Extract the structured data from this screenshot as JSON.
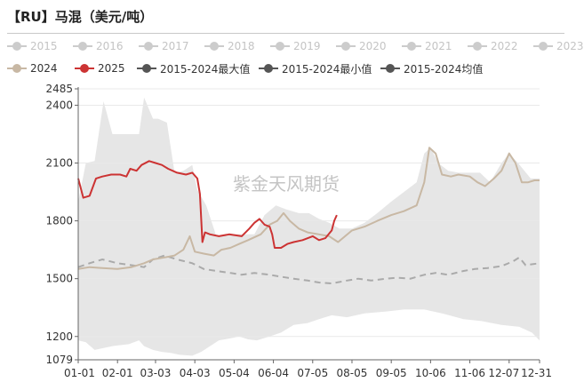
{
  "title": "【RU】马混（美元/吨）",
  "watermark": "紫金天风期货",
  "legend": [
    {
      "label": "2015",
      "color": "#cccccc",
      "muted": true
    },
    {
      "label": "2016",
      "color": "#cccccc",
      "muted": true
    },
    {
      "label": "2017",
      "color": "#cccccc",
      "muted": true
    },
    {
      "label": "2018",
      "color": "#cccccc",
      "muted": true
    },
    {
      "label": "2019",
      "color": "#cccccc",
      "muted": true
    },
    {
      "label": "2020",
      "color": "#cccccc",
      "muted": true
    },
    {
      "label": "2021",
      "color": "#cccccc",
      "muted": true
    },
    {
      "label": "2022",
      "color": "#cccccc",
      "muted": true
    },
    {
      "label": "2023",
      "color": "#cccccc",
      "muted": true
    },
    {
      "label": "2024",
      "color": "#c8b8a4",
      "muted": false
    },
    {
      "label": "2025",
      "color": "#cc3333",
      "muted": false
    },
    {
      "label": "2015-2024最大值",
      "color": "#555555",
      "muted": false
    },
    {
      "label": "2015-2024最小值",
      "color": "#555555",
      "muted": false
    },
    {
      "label": "2015-2024均值",
      "color": "#555555",
      "muted": false
    }
  ],
  "chart_data": {
    "type": "line",
    "title": "【RU】马混（美元/吨）",
    "x_axis": {
      "type": "date",
      "min": "01-01",
      "max": "12-31",
      "ticks": [
        "01-01",
        "02-01",
        "03-03",
        "04-03",
        "05-04",
        "06-04",
        "07-05",
        "08-05",
        "09-05",
        "10-06",
        "11-06",
        "12-07",
        "12-31"
      ]
    },
    "y_axis": {
      "min": 1079,
      "max": 2485,
      "ticks": [
        1079,
        1200,
        1500,
        1800,
        2100,
        2400,
        2485
      ]
    },
    "grid": true,
    "legend_position": "top",
    "colors": {
      "band": "#e6e6e6",
      "series_2024": "#c8b8a4",
      "series_2025": "#cc3333",
      "mean": "#aaaaaa"
    },
    "series": [
      {
        "name": "2015-2024最大值",
        "role": "band_upper",
        "points": [
          [
            "01-01",
            1900
          ],
          [
            "01-07",
            2100
          ],
          [
            "01-14",
            2110
          ],
          [
            "01-21",
            2420
          ],
          [
            "01-28",
            2250
          ],
          [
            "02-10",
            2250
          ],
          [
            "02-18",
            2250
          ],
          [
            "02-22",
            2440
          ],
          [
            "03-01",
            2330
          ],
          [
            "03-05",
            2330
          ],
          [
            "03-12",
            2310
          ],
          [
            "03-18",
            2050
          ],
          [
            "03-25",
            2060
          ],
          [
            "04-01",
            2090
          ],
          [
            "04-05",
            1960
          ],
          [
            "04-12",
            1880
          ],
          [
            "04-20",
            1720
          ],
          [
            "04-28",
            1730
          ],
          [
            "05-08",
            1730
          ],
          [
            "05-20",
            1730
          ],
          [
            "05-28",
            1830
          ],
          [
            "06-06",
            1880
          ],
          [
            "06-14",
            1860
          ],
          [
            "06-24",
            1840
          ],
          [
            "07-02",
            1840
          ],
          [
            "07-10",
            1810
          ],
          [
            "07-18",
            1790
          ],
          [
            "07-26",
            1760
          ],
          [
            "08-05",
            1760
          ],
          [
            "08-15",
            1790
          ],
          [
            "08-25",
            1840
          ],
          [
            "09-05",
            1900
          ],
          [
            "09-15",
            1950
          ],
          [
            "09-25",
            2000
          ],
          [
            "10-01",
            2150
          ],
          [
            "10-06",
            2180
          ],
          [
            "10-12",
            2100
          ],
          [
            "10-20",
            2060
          ],
          [
            "10-28",
            2050
          ],
          [
            "11-06",
            2050
          ],
          [
            "11-14",
            2050
          ],
          [
            "11-22",
            2000
          ],
          [
            "12-01",
            2100
          ],
          [
            "12-07",
            2150
          ],
          [
            "12-14",
            2100
          ],
          [
            "12-24",
            2020
          ],
          [
            "12-31",
            2020
          ]
        ]
      },
      {
        "name": "2015-2024最小值",
        "role": "band_lower",
        "points": [
          [
            "01-01",
            1180
          ],
          [
            "01-07",
            1170
          ],
          [
            "01-14",
            1130
          ],
          [
            "01-21",
            1140
          ],
          [
            "01-28",
            1150
          ],
          [
            "02-10",
            1160
          ],
          [
            "02-18",
            1180
          ],
          [
            "02-22",
            1150
          ],
          [
            "03-01",
            1130
          ],
          [
            "03-08",
            1120
          ],
          [
            "03-15",
            1115
          ],
          [
            "03-22",
            1105
          ],
          [
            "04-01",
            1100
          ],
          [
            "04-08",
            1120
          ],
          [
            "04-15",
            1150
          ],
          [
            "04-22",
            1180
          ],
          [
            "05-01",
            1190
          ],
          [
            "05-08",
            1200
          ],
          [
            "05-15",
            1185
          ],
          [
            "05-22",
            1180
          ],
          [
            "06-01",
            1200
          ],
          [
            "06-10",
            1220
          ],
          [
            "06-20",
            1260
          ],
          [
            "07-01",
            1270
          ],
          [
            "07-10",
            1290
          ],
          [
            "07-20",
            1310
          ],
          [
            "08-01",
            1300
          ],
          [
            "08-15",
            1320
          ],
          [
            "09-01",
            1330
          ],
          [
            "09-15",
            1340
          ],
          [
            "10-01",
            1340
          ],
          [
            "10-15",
            1320
          ],
          [
            "11-01",
            1290
          ],
          [
            "11-15",
            1280
          ],
          [
            "12-01",
            1260
          ],
          [
            "12-15",
            1250
          ],
          [
            "12-25",
            1220
          ],
          [
            "12-31",
            1180
          ]
        ]
      },
      {
        "name": "2024",
        "role": "line",
        "points": [
          [
            "01-01",
            1550
          ],
          [
            "01-10",
            1560
          ],
          [
            "01-20",
            1555
          ],
          [
            "02-01",
            1550
          ],
          [
            "02-12",
            1560
          ],
          [
            "02-22",
            1580
          ],
          [
            "03-01",
            1600
          ],
          [
            "03-10",
            1610
          ],
          [
            "03-18",
            1620
          ],
          [
            "03-25",
            1650
          ],
          [
            "03-30",
            1720
          ],
          [
            "04-03",
            1640
          ],
          [
            "04-10",
            1630
          ],
          [
            "04-18",
            1620
          ],
          [
            "04-24",
            1650
          ],
          [
            "05-01",
            1660
          ],
          [
            "05-08",
            1680
          ],
          [
            "05-15",
            1700
          ],
          [
            "05-25",
            1730
          ],
          [
            "06-01",
            1780
          ],
          [
            "06-07",
            1800
          ],
          [
            "06-12",
            1840
          ],
          [
            "06-17",
            1800
          ],
          [
            "06-24",
            1760
          ],
          [
            "07-01",
            1740
          ],
          [
            "07-10",
            1730
          ],
          [
            "07-18",
            1720
          ],
          [
            "07-25",
            1690
          ],
          [
            "08-05",
            1750
          ],
          [
            "08-15",
            1770
          ],
          [
            "08-25",
            1800
          ],
          [
            "09-05",
            1830
          ],
          [
            "09-15",
            1850
          ],
          [
            "09-25",
            1880
          ],
          [
            "10-01",
            2000
          ],
          [
            "10-05",
            2180
          ],
          [
            "10-10",
            2150
          ],
          [
            "10-15",
            2040
          ],
          [
            "10-22",
            2030
          ],
          [
            "10-28",
            2040
          ],
          [
            "11-06",
            2030
          ],
          [
            "11-12",
            2000
          ],
          [
            "11-18",
            1980
          ],
          [
            "11-25",
            2020
          ],
          [
            "12-01",
            2060
          ],
          [
            "12-07",
            2150
          ],
          [
            "12-12",
            2100
          ],
          [
            "12-17",
            2000
          ],
          [
            "12-22",
            2000
          ],
          [
            "12-27",
            2010
          ],
          [
            "12-31",
            2010
          ]
        ]
      },
      {
        "name": "2025",
        "role": "line",
        "points": [
          [
            "01-01",
            2020
          ],
          [
            "01-05",
            1920
          ],
          [
            "01-10",
            1930
          ],
          [
            "01-15",
            2020
          ],
          [
            "01-20",
            2030
          ],
          [
            "01-27",
            2040
          ],
          [
            "02-03",
            2040
          ],
          [
            "02-08",
            2030
          ],
          [
            "02-11",
            2070
          ],
          [
            "02-16",
            2060
          ],
          [
            "02-20",
            2090
          ],
          [
            "02-26",
            2110
          ],
          [
            "03-03",
            2100
          ],
          [
            "03-08",
            2090
          ],
          [
            "03-13",
            2070
          ],
          [
            "03-20",
            2050
          ],
          [
            "03-27",
            2040
          ],
          [
            "04-01",
            2050
          ],
          [
            "04-05",
            2020
          ],
          [
            "04-07",
            1940
          ],
          [
            "04-09",
            1690
          ],
          [
            "04-11",
            1740
          ],
          [
            "04-15",
            1730
          ],
          [
            "04-22",
            1720
          ],
          [
            "04-30",
            1730
          ],
          [
            "05-10",
            1720
          ],
          [
            "05-16",
            1760
          ],
          [
            "05-20",
            1790
          ],
          [
            "05-24",
            1810
          ],
          [
            "05-28",
            1780
          ],
          [
            "06-01",
            1770
          ],
          [
            "06-03",
            1730
          ],
          [
            "06-05",
            1660
          ],
          [
            "06-10",
            1660
          ],
          [
            "06-15",
            1680
          ],
          [
            "06-20",
            1690
          ],
          [
            "06-27",
            1700
          ],
          [
            "07-05",
            1720
          ],
          [
            "07-10",
            1700
          ],
          [
            "07-15",
            1710
          ],
          [
            "07-20",
            1750
          ],
          [
            "07-22",
            1800
          ],
          [
            "07-24",
            1830
          ]
        ]
      },
      {
        "name": "2015-2024均值",
        "role": "mean",
        "points": [
          [
            "01-01",
            1560
          ],
          [
            "01-10",
            1580
          ],
          [
            "01-20",
            1600
          ],
          [
            "02-01",
            1580
          ],
          [
            "02-12",
            1570
          ],
          [
            "02-22",
            1560
          ],
          [
            "03-01",
            1600
          ],
          [
            "03-10",
            1620
          ],
          [
            "03-20",
            1600
          ],
          [
            "04-01",
            1580
          ],
          [
            "04-10",
            1550
          ],
          [
            "04-20",
            1540
          ],
          [
            "05-01",
            1530
          ],
          [
            "05-10",
            1520
          ],
          [
            "05-20",
            1530
          ],
          [
            "06-01",
            1520
          ],
          [
            "06-10",
            1510
          ],
          [
            "06-20",
            1500
          ],
          [
            "07-01",
            1490
          ],
          [
            "07-10",
            1480
          ],
          [
            "07-20",
            1475
          ],
          [
            "08-01",
            1490
          ],
          [
            "08-10",
            1500
          ],
          [
            "08-20",
            1490
          ],
          [
            "09-01",
            1500
          ],
          [
            "09-10",
            1505
          ],
          [
            "09-20",
            1500
          ],
          [
            "10-01",
            1520
          ],
          [
            "10-10",
            1530
          ],
          [
            "10-20",
            1520
          ],
          [
            "11-01",
            1540
          ],
          [
            "11-10",
            1550
          ],
          [
            "11-20",
            1555
          ],
          [
            "12-01",
            1565
          ],
          [
            "12-10",
            1590
          ],
          [
            "12-15",
            1610
          ],
          [
            "12-20",
            1570
          ],
          [
            "12-31",
            1580
          ]
        ]
      }
    ]
  }
}
